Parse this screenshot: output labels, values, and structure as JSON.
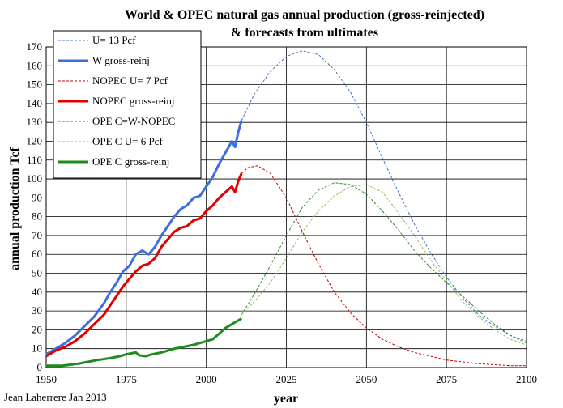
{
  "chart_data": {
    "type": "line",
    "title_line1": "World & OPEC natural gas annual production (gross-reinjected)",
    "title_line2": "& forecasts from ultimates",
    "xlabel": "year",
    "ylabel": "annual production Tcf",
    "credit": "Jean Laherrere Jan 2013",
    "xlim": [
      1950,
      2100
    ],
    "ylim": [
      0,
      170
    ],
    "xticks": [
      1950,
      1975,
      2000,
      2025,
      2050,
      2075,
      2100
    ],
    "yticks": [
      0,
      10,
      20,
      30,
      40,
      50,
      60,
      70,
      80,
      90,
      100,
      110,
      120,
      130,
      140,
      150,
      160,
      170
    ],
    "grid": true,
    "legend_position": "top-left",
    "series": [
      {
        "name": "U= 13 Pcf",
        "color": "#4472C4",
        "style": "dashed",
        "x": [
          2011,
          2015,
          2020,
          2025,
          2030,
          2035,
          2040,
          2045,
          2050,
          2055,
          2060,
          2065,
          2070,
          2075,
          2080,
          2085,
          2090,
          2095,
          2100
        ],
        "y": [
          131,
          145,
          157,
          165,
          168,
          166,
          158,
          146,
          130,
          111,
          93,
          76,
          61,
          48,
          37,
          28,
          22,
          17,
          14
        ]
      },
      {
        "name": "W gross-reinj",
        "color": "#3A6FE0",
        "style": "solid",
        "x": [
          1950,
          1953,
          1956,
          1959,
          1962,
          1965,
          1968,
          1970,
          1972,
          1974,
          1976,
          1978,
          1980,
          1982,
          1984,
          1986,
          1988,
          1990,
          1992,
          1994,
          1996,
          1998,
          2000,
          2002,
          2004,
          2006,
          2008,
          2009,
          2010,
          2011
        ],
        "y": [
          7,
          10,
          13,
          17,
          22,
          27,
          34,
          40,
          45,
          51,
          54,
          60,
          62,
          60,
          64,
          70,
          75,
          80,
          84,
          86,
          90,
          91,
          96,
          101,
          108,
          114,
          120,
          117,
          125,
          131
        ]
      },
      {
        "name": "NOPEC U= 7 Pcf",
        "color": "#C00000",
        "style": "dashed",
        "x": [
          2011,
          2013,
          2016,
          2020,
          2025,
          2030,
          2035,
          2040,
          2045,
          2050,
          2055,
          2060,
          2065,
          2070,
          2075,
          2080,
          2085,
          2090,
          2095,
          2100
        ],
        "y": [
          103,
          106,
          107,
          103,
          90,
          72,
          55,
          40,
          29,
          21,
          15,
          11,
          8,
          6,
          4,
          3,
          2,
          1.5,
          1,
          1
        ]
      },
      {
        "name": "NOPEC gross-reinj",
        "color": "#E00000",
        "style": "solid",
        "x": [
          1950,
          1953,
          1956,
          1959,
          1962,
          1965,
          1968,
          1970,
          1972,
          1974,
          1976,
          1978,
          1980,
          1982,
          1984,
          1986,
          1988,
          1990,
          1992,
          1994,
          1996,
          1998,
          2000,
          2002,
          2004,
          2006,
          2008,
          2009,
          2010,
          2011
        ],
        "y": [
          6,
          9,
          11,
          14,
          18,
          23,
          28,
          33,
          38,
          43,
          47,
          51,
          54,
          55,
          58,
          64,
          68,
          72,
          74,
          75,
          78,
          79,
          83,
          86,
          90,
          93,
          96,
          93,
          99,
          103
        ]
      },
      {
        "name": "OPE C=W-NOPEC",
        "color": "#2E8B2E",
        "style": "dashed",
        "x": [
          2011,
          2015,
          2020,
          2025,
          2030,
          2035,
          2040,
          2045,
          2050,
          2055,
          2060,
          2065,
          2070,
          2075,
          2080,
          2085,
          2090,
          2095,
          2100
        ],
        "y": [
          28,
          39,
          54,
          70,
          85,
          94,
          98,
          97,
          92,
          83,
          73,
          62,
          53,
          45,
          38,
          30,
          23,
          17,
          13
        ]
      },
      {
        "name": "OPE C U= 6 Pcf",
        "color": "#9BBB59",
        "style": "dashed",
        "x": [
          2011,
          2015,
          2020,
          2025,
          2030,
          2035,
          2040,
          2045,
          2050,
          2055,
          2060,
          2065,
          2070,
          2075,
          2080,
          2085,
          2090,
          2095,
          2100
        ],
        "y": [
          28,
          35,
          45,
          58,
          72,
          83,
          91,
          96,
          97,
          93,
          82,
          70,
          57,
          46,
          35,
          27,
          20,
          15,
          12
        ]
      },
      {
        "name": "OPE C gross-reinj",
        "color": "#1E8C1E",
        "style": "solid",
        "x": [
          1950,
          1955,
          1960,
          1963,
          1966,
          1970,
          1973,
          1975,
          1978,
          1979,
          1981,
          1983,
          1986,
          1990,
          1993,
          1996,
          1998,
          2000,
          2002,
          2004,
          2006,
          2008,
          2009,
          2010,
          2011
        ],
        "y": [
          1,
          1,
          2,
          3,
          4,
          5,
          6,
          7,
          8,
          6.5,
          6,
          7,
          8,
          10,
          11,
          12,
          13,
          14,
          15,
          18,
          21,
          23,
          24,
          25,
          26
        ]
      }
    ]
  }
}
